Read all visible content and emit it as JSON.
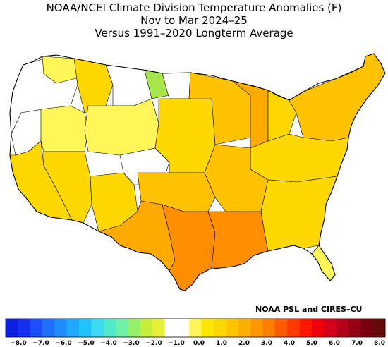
{
  "map": {
    "title_line1": "NOAA/NCEI Climate Division Temperature Anomalies (F)",
    "title_line2": "Nov to Mar 2024–25",
    "title_line3": "Versus 1991–2020 Longterm Average",
    "credit": "NOAA PSL and CIRES–CU",
    "colors": {
      "neutral": "#ffffff",
      "light_yellow": "#fff75a",
      "yellow": "#ffd800",
      "gold": "#ffc200",
      "light_orange": "#ffaa00",
      "orange": "#ff8f00",
      "green": "#a6e64a",
      "outline": "#000000"
    }
  },
  "colorbar": {
    "labels": [
      "−8.0",
      "−7.0",
      "−6.0",
      "−5.0",
      "−4.0",
      "−3.0",
      "−2.0",
      "−1.0",
      "0.0",
      "1.0",
      "2.0",
      "3.0",
      "4.0",
      "5.0",
      "6.0",
      "7.0",
      "8.0"
    ],
    "swatches": [
      "#0d1fe0",
      "#1430f0",
      "#1a50ff",
      "#1e6eff",
      "#1f8cff",
      "#20aaff",
      "#22c4ff",
      "#3adcf2",
      "#52eacc",
      "#6ef0a6",
      "#95f06a",
      "#c2ee3c",
      "#e6f037",
      "#ffffff",
      "#ffffff",
      "#fff55a",
      "#ffe600",
      "#ffd800",
      "#ffc600",
      "#ffb000",
      "#ff9800",
      "#ff7e00",
      "#ff5a00",
      "#ff3a00",
      "#ff1800",
      "#f0000c",
      "#d20018",
      "#b40018",
      "#960014",
      "#7a0010",
      "#640a0a"
    ]
  }
}
